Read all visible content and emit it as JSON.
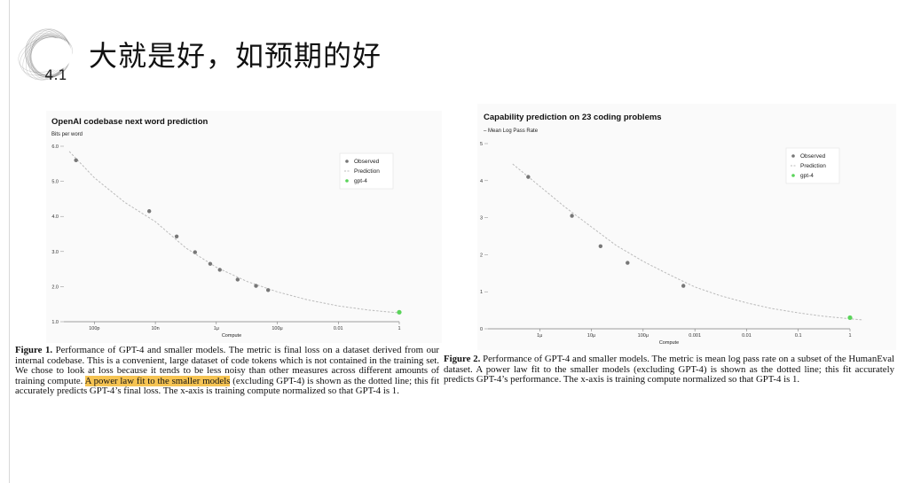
{
  "slide": {
    "section_number": "4.1",
    "title": "大就是好，如预期的好"
  },
  "colors": {
    "observed": "#777777",
    "prediction": "#bbbbbb",
    "gpt4": "#5ad45a",
    "highlight": "#f6c453"
  },
  "chart_data": [
    {
      "type": "scatter",
      "title": "OpenAI codebase next word prediction",
      "ylabel": "Bits per word",
      "xlabel": "Compute",
      "x_scale": "log",
      "xlim": [
        1e-11,
        1
      ],
      "ylim": [
        1.0,
        6.0
      ],
      "x_ticks": [
        {
          "value": 1e-10,
          "label": "100p"
        },
        {
          "value": 1e-08,
          "label": "10n"
        },
        {
          "value": 1e-06,
          "label": "1μ"
        },
        {
          "value": 0.0001,
          "label": "100μ"
        },
        {
          "value": 0.01,
          "label": "0.01"
        },
        {
          "value": 1,
          "label": "1"
        }
      ],
      "y_ticks": [
        {
          "value": 1.0,
          "label": "1.0"
        },
        {
          "value": 2.0,
          "label": "2.0"
        },
        {
          "value": 3.0,
          "label": "3.0"
        },
        {
          "value": 4.0,
          "label": "4.0"
        },
        {
          "value": 5.0,
          "label": "5.0"
        },
        {
          "value": 6.0,
          "label": "6.0"
        }
      ],
      "legend": {
        "placement": "top-right",
        "entries": [
          "Observed",
          "Prediction",
          "gpt-4"
        ]
      },
      "observed": {
        "x": [
          2.5e-11,
          6.3e-09,
          5e-08,
          2e-07,
          6.3e-07,
          1.3e-06,
          5e-06,
          2e-05,
          5e-05
        ],
        "y": [
          5.6,
          4.15,
          3.43,
          2.98,
          2.65,
          2.48,
          2.2,
          2.02,
          1.9
        ]
      },
      "prediction": {
        "x": [
          1.5e-11,
          1e-10,
          1e-09,
          1e-08,
          1e-07,
          1e-06,
          1e-05,
          0.0001,
          0.001,
          0.01,
          0.1,
          1
        ],
        "y": [
          5.85,
          5.1,
          4.4,
          3.85,
          3.1,
          2.55,
          2.15,
          1.85,
          1.62,
          1.45,
          1.33,
          1.25
        ]
      },
      "gpt4": {
        "x": [
          1
        ],
        "y": [
          1.27
        ]
      }
    },
    {
      "type": "scatter",
      "title": "Capability prediction on 23 coding problems",
      "ylabel": "– Mean Log Pass Rate",
      "xlabel": "Compute",
      "x_scale": "log",
      "xlim": [
        1e-07,
        1
      ],
      "ylim": [
        0,
        5
      ],
      "x_ticks": [
        {
          "value": 1e-06,
          "label": "1μ"
        },
        {
          "value": 1e-05,
          "label": "10μ"
        },
        {
          "value": 0.0001,
          "label": "100μ"
        },
        {
          "value": 0.001,
          "label": "0.001"
        },
        {
          "value": 0.01,
          "label": "0.01"
        },
        {
          "value": 0.1,
          "label": "0.1"
        },
        {
          "value": 1,
          "label": "1"
        }
      ],
      "y_ticks": [
        {
          "value": 0,
          "label": "0"
        },
        {
          "value": 1,
          "label": "1"
        },
        {
          "value": 2,
          "label": "2"
        },
        {
          "value": 3,
          "label": "3"
        },
        {
          "value": 4,
          "label": "4"
        },
        {
          "value": 5,
          "label": "5"
        }
      ],
      "legend": {
        "placement": "top-right",
        "entries": [
          "Observed",
          "Prediction",
          "gpt-4"
        ]
      },
      "observed": {
        "x": [
          6e-07,
          4.2e-06,
          1.5e-05,
          5e-05,
          0.0006
        ],
        "y": [
          4.1,
          3.05,
          2.23,
          1.78,
          1.16
        ]
      },
      "prediction": {
        "x": [
          3e-07,
          1e-06,
          3e-06,
          1e-05,
          3e-05,
          0.0001,
          0.0003,
          0.001,
          0.003,
          0.01,
          0.03,
          0.1,
          0.3,
          1,
          1.8
        ],
        "y": [
          4.45,
          3.85,
          3.3,
          2.75,
          2.25,
          1.82,
          1.48,
          1.13,
          0.9,
          0.7,
          0.55,
          0.43,
          0.34,
          0.27,
          0.24
        ]
      },
      "gpt4": {
        "x": [
          1
        ],
        "y": [
          0.3
        ]
      }
    }
  ],
  "captions": {
    "fig1": {
      "label": "Figure 1.",
      "text_a": " Performance of GPT-4 and smaller models. The metric is final loss on a dataset derived from our internal codebase. This is a convenient, large dataset of code tokens which is not contained in the training set. We chose to look at loss because it tends to be less noisy than other measures across different amounts of training compute. ",
      "highlight": "A power law fit to the smaller models",
      "text_b": " (excluding GPT-4) is shown as the dotted line; this fit accurately predicts GPT-4’s final loss. The x-axis is training compute normalized so that GPT-4 is 1."
    },
    "fig2": {
      "label": "Figure 2.",
      "text": " Performance of GPT-4 and smaller models. The metric is mean log pass rate on a subset of the HumanEval dataset. A power law fit to the smaller models (excluding GPT-4) is shown as the dotted line; this fit accurately predicts GPT-4’s performance. The x-axis is training compute normalized so that GPT-4 is 1."
    }
  }
}
